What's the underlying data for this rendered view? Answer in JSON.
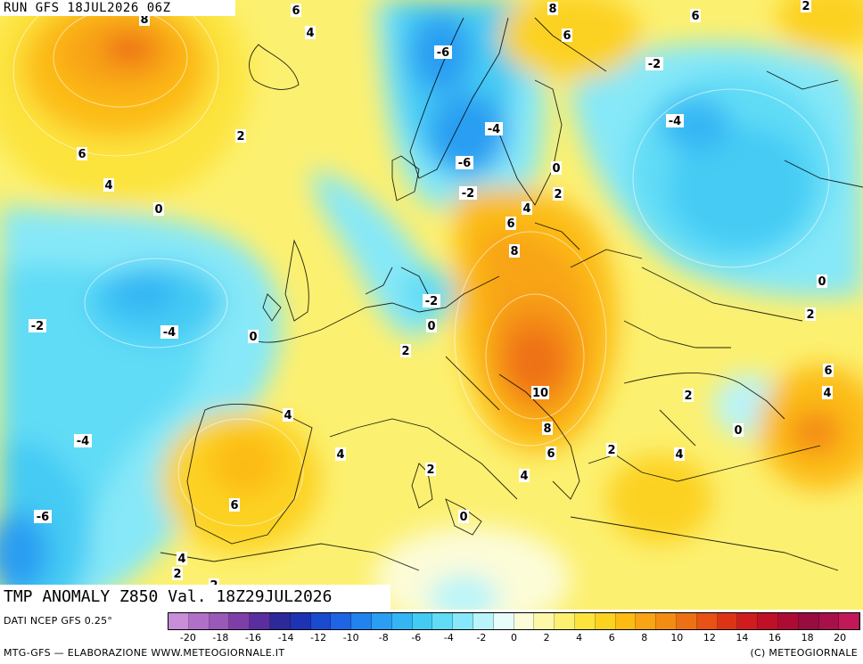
{
  "header": {
    "run_label": "RUN GFS 18JUL2026 06Z"
  },
  "map": {
    "title": "TMP ANOMALY Z850 Val. 18Z29JUL2026",
    "contour_labels": [
      {
        "value": "8"
      },
      {
        "value": "6"
      },
      {
        "value": "4"
      },
      {
        "value": "6"
      },
      {
        "value": "4"
      },
      {
        "value": "2"
      },
      {
        "value": "0"
      },
      {
        "value": "-2"
      },
      {
        "value": "-4"
      },
      {
        "value": "-4"
      },
      {
        "value": "0"
      },
      {
        "value": "2"
      },
      {
        "value": "6"
      },
      {
        "value": "-6"
      },
      {
        "value": "-4"
      },
      {
        "value": "-6"
      },
      {
        "value": "-2"
      },
      {
        "value": "0"
      },
      {
        "value": "8"
      },
      {
        "value": "6"
      },
      {
        "value": "2"
      },
      {
        "value": "-2"
      },
      {
        "value": "-4"
      },
      {
        "value": "4"
      },
      {
        "value": "6"
      },
      {
        "value": "8"
      },
      {
        "value": "2"
      },
      {
        "value": "-2"
      },
      {
        "value": "0"
      },
      {
        "value": "2"
      },
      {
        "value": "10"
      },
      {
        "value": "4"
      },
      {
        "value": "8"
      },
      {
        "value": "6"
      },
      {
        "value": "4"
      },
      {
        "value": "2"
      },
      {
        "value": "4"
      },
      {
        "value": "2"
      },
      {
        "value": "0"
      },
      {
        "value": "6"
      },
      {
        "value": "4"
      },
      {
        "value": "2"
      },
      {
        "value": "0"
      },
      {
        "value": "-6"
      },
      {
        "value": "4"
      },
      {
        "value": "2"
      },
      {
        "value": "6"
      },
      {
        "value": "4"
      },
      {
        "value": "0"
      },
      {
        "value": "2"
      }
    ]
  },
  "legend": {
    "source": "DATI NCEP GFS 0.25°",
    "colors": [
      "#c88ed8",
      "#b070c8",
      "#9a58b8",
      "#7e3ea8",
      "#5a2e9e",
      "#2c2a9a",
      "#1c34b4",
      "#1a4ad0",
      "#1e64e4",
      "#2282ee",
      "#2a9ef2",
      "#34b6f4",
      "#44cbf4",
      "#60dcf6",
      "#86e8f8",
      "#b8f4fa",
      "#e8fcfa",
      "#fcfcd8",
      "#fcf8a8",
      "#fcf070",
      "#fce43c",
      "#fcd220",
      "#fcbc14",
      "#f8a414",
      "#f48c14",
      "#ee7014",
      "#e85214",
      "#de3416",
      "#d01c1e",
      "#c01028",
      "#ac0c34",
      "#980c40",
      "#a8104a",
      "#c01858"
    ],
    "tick_labels": [
      "-20",
      "-18",
      "-16",
      "-14",
      "-12",
      "-10",
      "-8",
      "-6",
      "-4",
      "-2",
      "0",
      "2",
      "4",
      "6",
      "8",
      "10",
      "12",
      "14",
      "16",
      "18",
      "20"
    ],
    "credit_left": "MTG-GFS — ELABORAZIONE WWW.METEOGIORNALE.IT",
    "credit_right": "(C) METEOGIORNALE"
  }
}
